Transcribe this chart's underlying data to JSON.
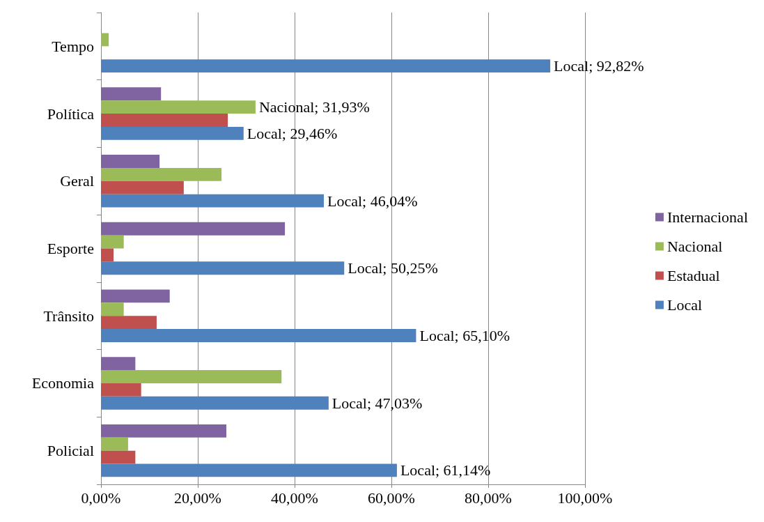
{
  "chart_data": {
    "type": "bar",
    "orientation": "horizontal",
    "categories": [
      "Tempo",
      "Política",
      "Geral",
      "Esporte",
      "Trânsito",
      "Economia",
      "Policial"
    ],
    "series": [
      {
        "name": "Internacional",
        "color": "#8064a2",
        "values": [
          null,
          12.4,
          12.1,
          38.0,
          14.2,
          7.1,
          25.9
        ]
      },
      {
        "name": "Nacional",
        "color": "#9bbb59",
        "values": [
          1.6,
          31.93,
          24.9,
          4.7,
          4.7,
          37.3,
          5.6
        ],
        "value_labels": [
          null,
          "Nacional; 31,93%",
          null,
          null,
          null,
          null,
          null
        ]
      },
      {
        "name": "Estadual",
        "color": "#c0504d",
        "values": [
          null,
          26.2,
          17.1,
          2.6,
          11.5,
          8.3,
          7.1
        ]
      },
      {
        "name": "Local",
        "color": "#4f81bd",
        "values": [
          92.82,
          29.46,
          46.04,
          50.25,
          65.1,
          47.03,
          61.14
        ],
        "value_labels": [
          "Local; 92,82%",
          "Local; 29,46%",
          "Local; 46,04%",
          "Local; 50,25%",
          "Local; 65,10%",
          "Local; 47,03%",
          "Local; 61,14%"
        ]
      }
    ],
    "xlim": [
      0,
      100
    ],
    "xticks": [
      {
        "value": 0,
        "label": "0,00%"
      },
      {
        "value": 20,
        "label": "20,00%"
      },
      {
        "value": 40,
        "label": "40,00%"
      },
      {
        "value": 60,
        "label": "60,00%"
      },
      {
        "value": 80,
        "label": "80,00%"
      },
      {
        "value": 100,
        "label": "100,00%"
      }
    ],
    "grid": "x",
    "legend": "right"
  }
}
